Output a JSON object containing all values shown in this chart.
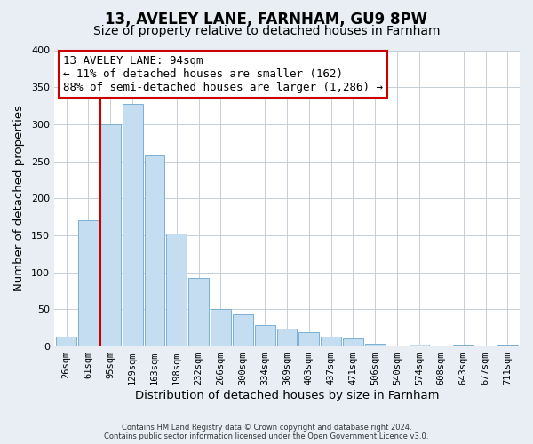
{
  "title": "13, AVELEY LANE, FARNHAM, GU9 8PW",
  "subtitle": "Size of property relative to detached houses in Farnham",
  "xlabel": "Distribution of detached houses by size in Farnham",
  "ylabel": "Number of detached properties",
  "bar_labels": [
    "26sqm",
    "61sqm",
    "95sqm",
    "129sqm",
    "163sqm",
    "198sqm",
    "232sqm",
    "266sqm",
    "300sqm",
    "334sqm",
    "369sqm",
    "403sqm",
    "437sqm",
    "471sqm",
    "506sqm",
    "540sqm",
    "574sqm",
    "608sqm",
    "643sqm",
    "677sqm",
    "711sqm"
  ],
  "bar_values": [
    13,
    170,
    300,
    328,
    258,
    153,
    92,
    50,
    43,
    29,
    24,
    20,
    13,
    11,
    4,
    0,
    3,
    0,
    2,
    0,
    2
  ],
  "bar_color": "#c5ddf0",
  "bar_edge_color": "#7ab0d4",
  "marker_index": 2,
  "marker_color": "#cc0000",
  "annotation_title": "13 AVELEY LANE: 94sqm",
  "annotation_line1": "← 11% of detached houses are smaller (162)",
  "annotation_line2": "88% of semi-detached houses are larger (1,286) →",
  "annotation_box_color": "#ffffff",
  "annotation_box_edge": "#cc0000",
  "ylim": [
    0,
    400
  ],
  "yticks": [
    0,
    50,
    100,
    150,
    200,
    250,
    300,
    350,
    400
  ],
  "footnote1": "Contains HM Land Registry data © Crown copyright and database right 2024.",
  "footnote2": "Contains public sector information licensed under the Open Government Licence v3.0.",
  "background_color": "#e8eef4",
  "plot_background": "#ffffff",
  "grid_color": "#c5cfd8",
  "title_fontsize": 12,
  "subtitle_fontsize": 10,
  "axis_label_fontsize": 9.5,
  "tick_fontsize": 7.5,
  "annot_fontsize": 9
}
